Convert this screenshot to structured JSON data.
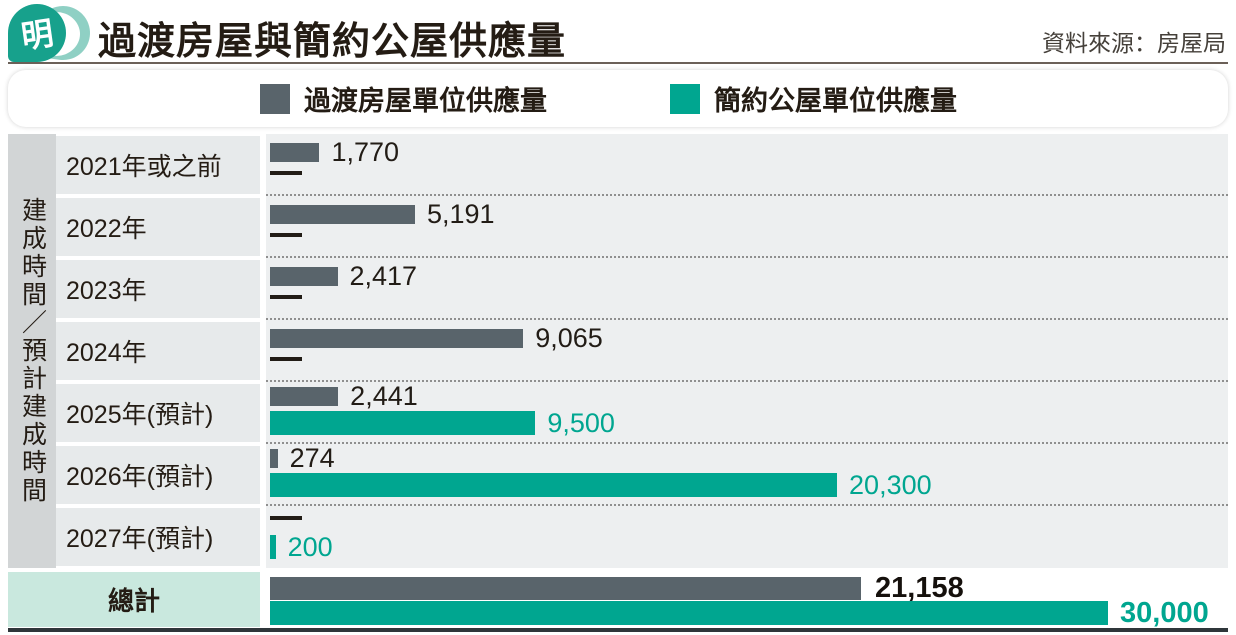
{
  "header": {
    "logo_glyph": "明",
    "title": "過渡房屋與簡約公屋供應量",
    "source": "資料來源：房屋局"
  },
  "legend": {
    "items": [
      {
        "label": "過渡房屋單位供應量",
        "color": "#59646b"
      },
      {
        "label": "簡約公屋單位供應量",
        "color": "#00a690"
      }
    ]
  },
  "axis": {
    "label": "建成時間／預計建成時間"
  },
  "chart_data": {
    "type": "bar",
    "orientation": "horizontal",
    "title": "過渡房屋與簡約公屋供應量",
    "source": "資料來源：房屋局",
    "xmax": 30000,
    "grid": "dotted-row-separators",
    "no_value_marker": "—",
    "categories": [
      "2021年或之前",
      "2022年",
      "2023年",
      "2024年",
      "2025年(預計)",
      "2026年(預計)",
      "2027年(預計)"
    ],
    "series": [
      {
        "name": "過渡房屋單位供應量",
        "color": "#59646b",
        "values": [
          1770,
          5191,
          2417,
          9065,
          2441,
          274,
          null
        ]
      },
      {
        "name": "簡約公屋單位供應量",
        "color": "#00a690",
        "values": [
          null,
          null,
          null,
          null,
          9500,
          20300,
          200
        ]
      }
    ],
    "total": {
      "label": "總計",
      "values": [
        21158,
        30000
      ]
    }
  },
  "colors": {
    "gray_bar": "#59646b",
    "teal_bar": "#00a690",
    "axis_column_bg": "#d2d5d6",
    "label_column_bg": "#e7eaeb",
    "plot_bg": "#edeff0",
    "total_label_bg": "#c9e8de",
    "logo_teal": "#17a18c",
    "logo_light_teal": "#8fd0c4"
  }
}
